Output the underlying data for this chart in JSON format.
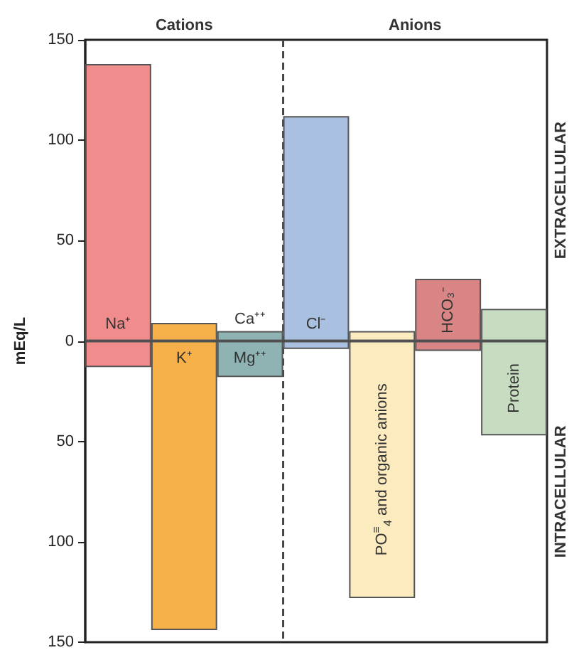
{
  "chart_data": {
    "type": "bar",
    "stacked": true,
    "ylabel": "mEq/L",
    "categories": [
      "Na⁺",
      "K⁺",
      "Ca⁺⁺",
      "Cl⁻",
      "PO$^{≡}$$_{4}$ and organic anions",
      "HCO₃⁻",
      "Protein"
    ],
    "series": [
      {
        "colors": [
          "#f08c8c",
          "#f5b04a",
          "#8fb3b3",
          "#a9c0e0",
          "#fdebc0",
          "#d98585",
          "#c7dcc0"
        ],
        "values": [
          138,
          9,
          5,
          112,
          5,
          31,
          16
        ]
      },
      {
        "colors": [
          "#f08c8c",
          "#f5b04a",
          "#8fb3b3",
          "#a9c0e0",
          "#fdebc0",
          "#d98585",
          "#c7dcc0"
        ],
        "values": [
          -13,
          -144,
          -18,
          -4,
          -128,
          -5,
          -47
        ]
      }
    ],
    "ylim": [
      -150,
      150
    ],
    "yticks": [
      {
        "value": -150,
        "label": "150"
      },
      {
        "value": -100,
        "label": "100"
      },
      {
        "value": -50,
        "label": "50"
      },
      0,
      50,
      100,
      150
    ],
    "annotations": [
      "Cations",
      "Anions",
      "EXTRACELLULAR",
      "INTRACELLULAR",
      "Mg⁺⁺"
    ]
  }
}
